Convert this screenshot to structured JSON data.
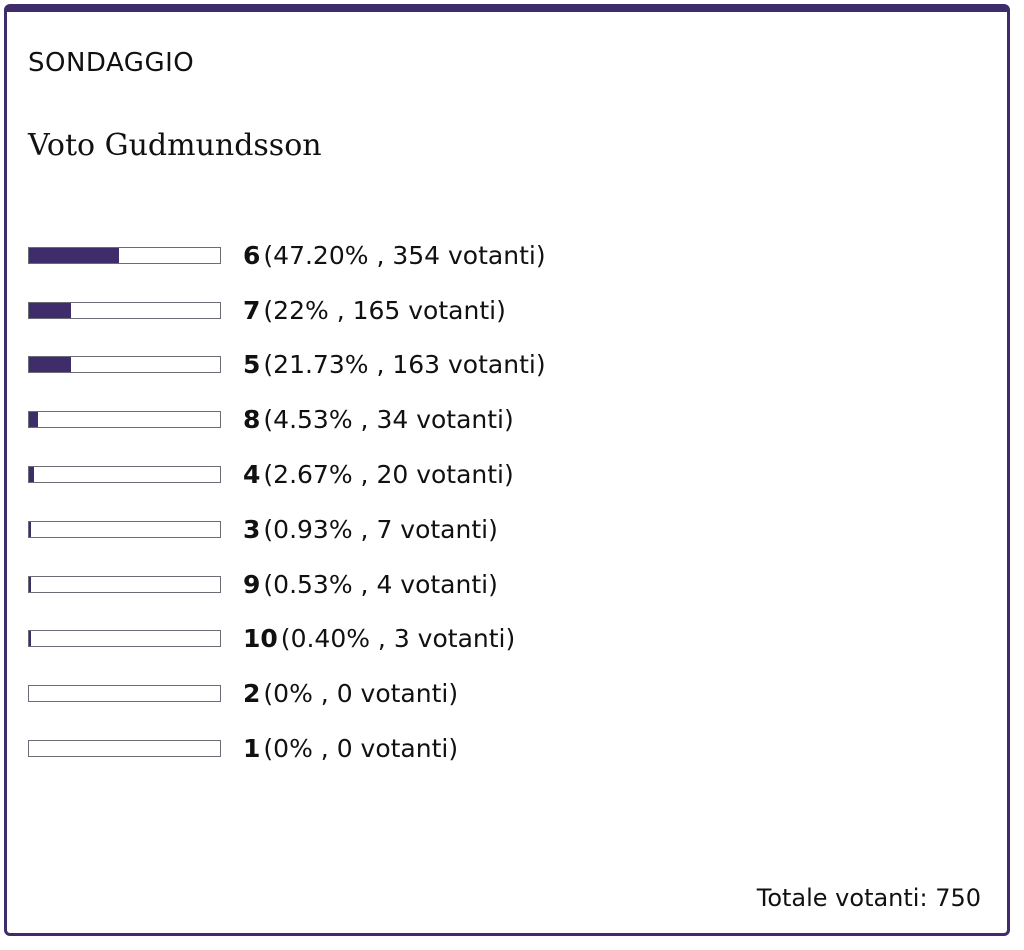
{
  "poll": {
    "kicker": "SONDAGGIO",
    "title": "Voto Gudmundsson",
    "total_label": "Totale votanti: 750",
    "accent_color": "#3f2d6b",
    "options": [
      {
        "label": "6",
        "percent_text": "47.20%",
        "votes_text": "354 votanti",
        "percent": 47.2,
        "votes": 354
      },
      {
        "label": "7",
        "percent_text": "22%",
        "votes_text": "165 votanti",
        "percent": 22,
        "votes": 165
      },
      {
        "label": "5",
        "percent_text": "21.73%",
        "votes_text": "163 votanti",
        "percent": 21.73,
        "votes": 163
      },
      {
        "label": "8",
        "percent_text": "4.53%",
        "votes_text": "34 votanti",
        "percent": 4.53,
        "votes": 34
      },
      {
        "label": "4",
        "percent_text": "2.67%",
        "votes_text": "20 votanti",
        "percent": 2.67,
        "votes": 20
      },
      {
        "label": "3",
        "percent_text": "0.93%",
        "votes_text": "7 votanti",
        "percent": 0.93,
        "votes": 7
      },
      {
        "label": "9",
        "percent_text": "0.53%",
        "votes_text": "4 votanti",
        "percent": 0.53,
        "votes": 4
      },
      {
        "label": "10",
        "percent_text": "0.40%",
        "votes_text": "3 votanti",
        "percent": 0.4,
        "votes": 3
      },
      {
        "label": "2",
        "percent_text": "0%",
        "votes_text": "0 votanti",
        "percent": 0,
        "votes": 0
      },
      {
        "label": "1",
        "percent_text": "0%",
        "votes_text": "0 votanti",
        "percent": 0,
        "votes": 0
      }
    ]
  }
}
